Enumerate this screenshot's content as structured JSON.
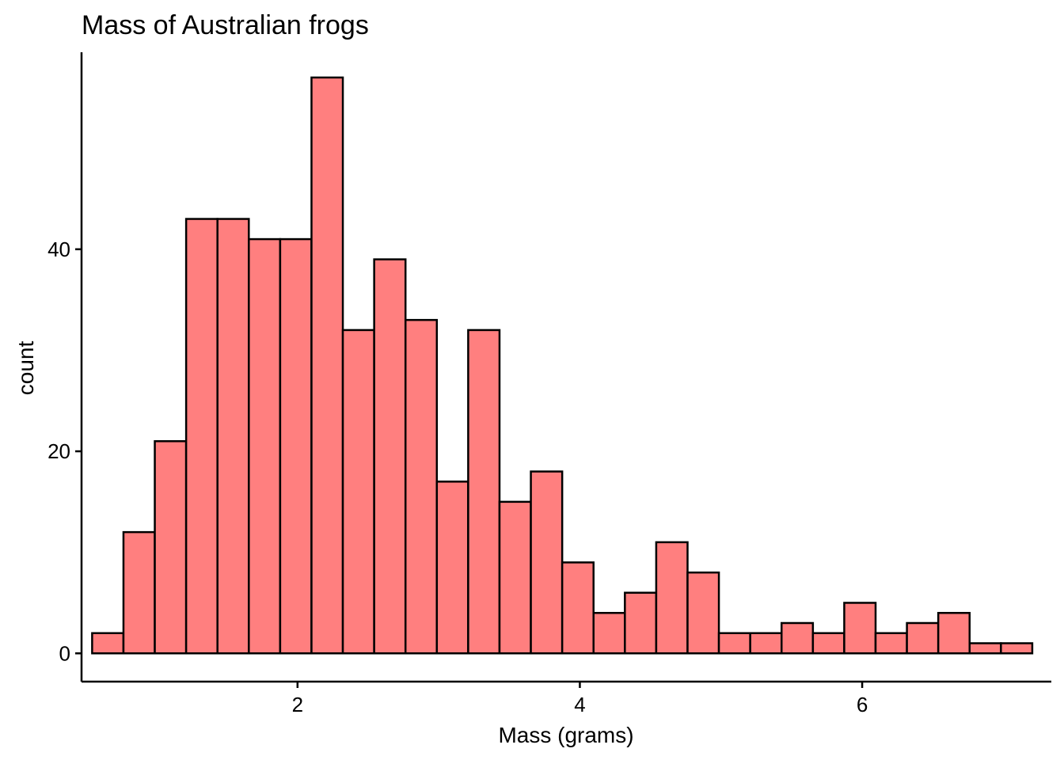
{
  "chart_data": {
    "type": "bar",
    "subtype": "histogram",
    "title": "Mass of Australian frogs",
    "xlabel": "Mass (grams)",
    "ylabel": "count",
    "xlim": [
      0.47,
      7.34
    ],
    "ylim": [
      -2.8,
      59.5
    ],
    "x_ticks": [
      2,
      4,
      6
    ],
    "y_ticks": [
      0,
      20,
      40
    ],
    "bin_width": 0.222,
    "bin_edges_start": 0.545,
    "values": [
      2,
      12,
      21,
      43,
      43,
      41,
      41,
      57,
      32,
      39,
      33,
      17,
      32,
      15,
      18,
      9,
      4,
      6,
      11,
      8,
      2,
      2,
      3,
      2,
      5,
      2,
      3,
      4,
      1,
      1
    ],
    "bar_color": "#FF7F7F",
    "bar_outline": "#000000",
    "grid": false,
    "legend": "none"
  }
}
